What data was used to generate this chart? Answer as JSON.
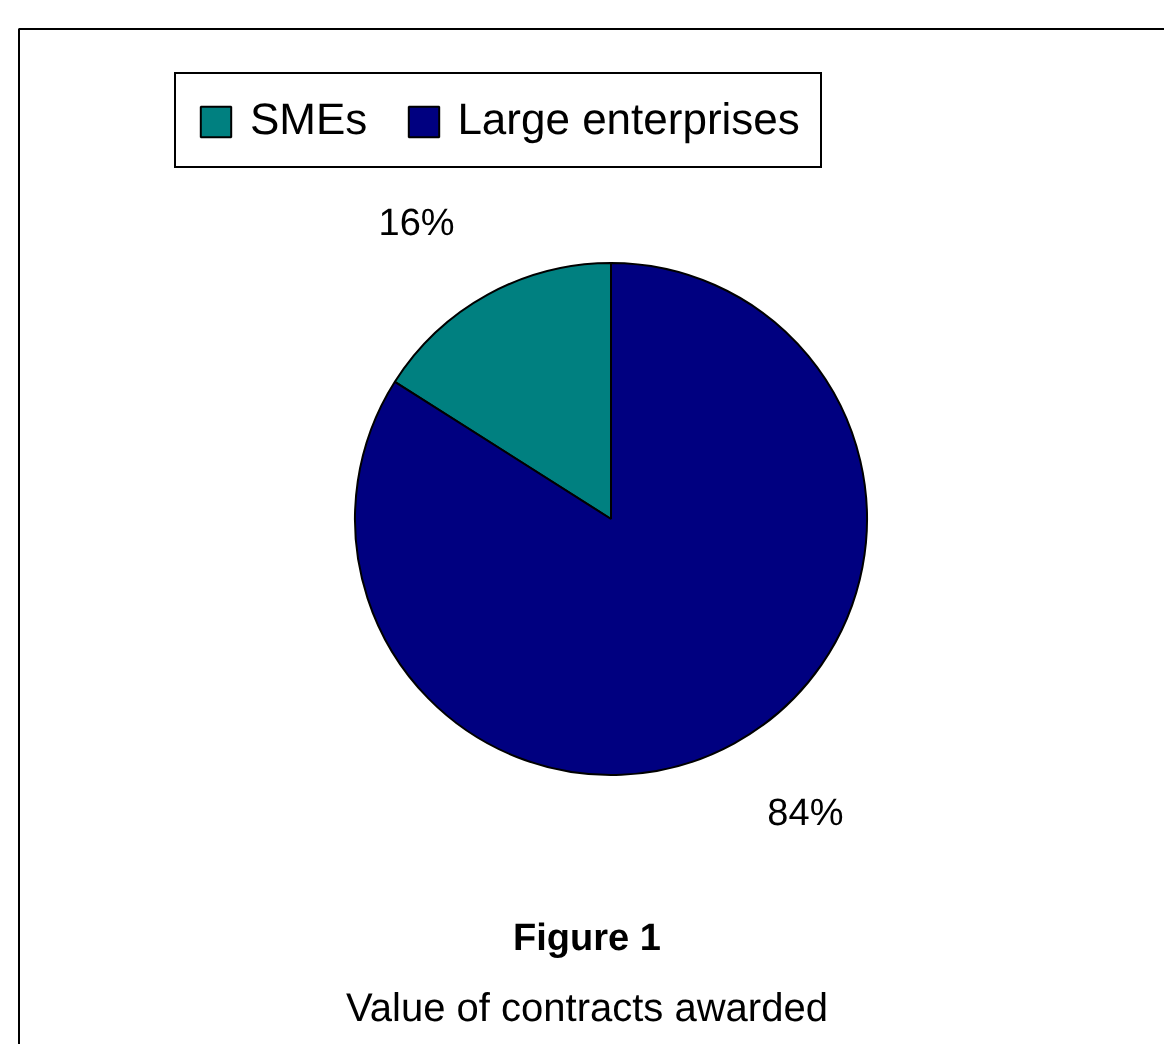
{
  "chart_data": {
    "type": "pie",
    "title": "Figure 1",
    "subtitle": "Value of contracts awarded",
    "categories": [
      "SMEs",
      "Large enterprises"
    ],
    "values": [
      16,
      84
    ],
    "colors": [
      "#008080",
      "#000080"
    ],
    "value_labels": [
      "16%",
      "84%"
    ],
    "legend": "top"
  }
}
